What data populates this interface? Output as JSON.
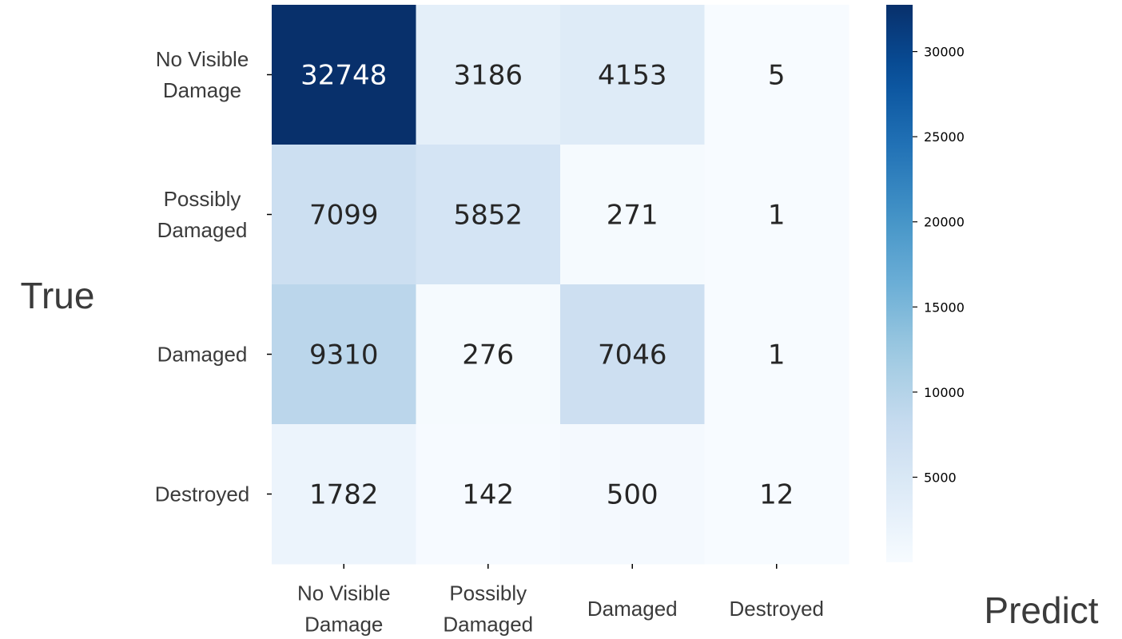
{
  "chart_data": {
    "type": "heatmap",
    "ylabel": "True",
    "xlabel": "Predict",
    "rows": [
      [
        "No Visible",
        "Damage"
      ],
      [
        "Possibly",
        "Damaged"
      ],
      [
        "Damaged"
      ],
      [
        "Destroyed"
      ]
    ],
    "columns": [
      [
        "No Visible",
        "Damage"
      ],
      [
        "Possibly",
        "Damaged"
      ],
      [
        "Damaged"
      ],
      [
        "Destroyed"
      ]
    ],
    "values": [
      [
        32748,
        3186,
        4153,
        5
      ],
      [
        7099,
        5852,
        271,
        1
      ],
      [
        9310,
        276,
        7046,
        1
      ],
      [
        1782,
        142,
        500,
        12
      ]
    ],
    "colorbar": {
      "cmap": "Blues",
      "range": [
        1,
        32748
      ],
      "ticks": [
        5000,
        10000,
        15000,
        20000,
        25000,
        30000
      ]
    }
  }
}
